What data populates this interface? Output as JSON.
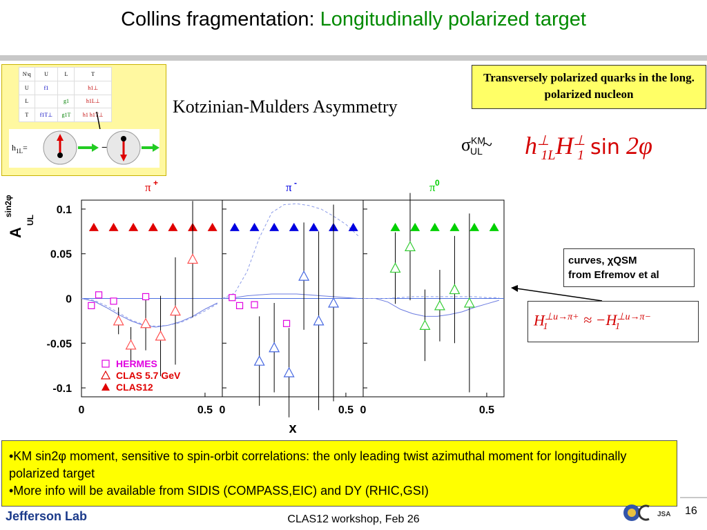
{
  "header": {
    "title_prefix": "Collins fragmentation: ",
    "title_highlight": "Longitudinally polarized target"
  },
  "tmd_table": {
    "corner_n": "N",
    "corner_q": "q",
    "col_headers": [
      "U",
      "L",
      "T"
    ],
    "rows": [
      {
        "label": "U",
        "cells": [
          "f1",
          "",
          "h1⊥"
        ]
      },
      {
        "label": "L",
        "cells": [
          "",
          "g1",
          "h1L⊥"
        ]
      },
      {
        "label": "T",
        "cells": [
          "f1T⊥",
          "g1T",
          "h1 h1T⊥"
        ]
      }
    ],
    "h1l_label": "h",
    "h1l_sub": "1L",
    "h1l_eq": "=",
    "minus": "−"
  },
  "km_title": "Kotzinian-Mulders Asymmetry",
  "trans_box": "Transversely polarized quarks in the long. polarized nucleon",
  "sigma": {
    "symbol": "σ",
    "sup": "KM",
    "sub": "UL",
    "tilde": "~"
  },
  "formula": {
    "h": "h",
    "h_sub": "1L",
    "H": "H",
    "H_sub": "1",
    "perp": "⊥",
    "sin": "sin",
    "arg": "2φ"
  },
  "curves_box": {
    "line1": "curves, χQSM",
    "line2": "from Efremov et al"
  },
  "h_box": {
    "lhs": "H",
    "sup": "⊥u→π+",
    "sub": "1",
    "approx": "≈ −H",
    "rhs_sup": "⊥u→π−",
    "rhs_sub": "1"
  },
  "chart_data": {
    "type": "scatter",
    "ylabel": "A",
    "ylabel_sup": "sin2φ",
    "ylabel_sub": "UL",
    "xlabel": "x",
    "ylim": [
      -0.11,
      0.11
    ],
    "xlim": [
      0,
      0.57
    ],
    "yticks": [
      "0.1",
      "0.05",
      "0",
      "-0.05",
      "-0.1"
    ],
    "ytick_values": [
      0.1,
      0.05,
      0,
      -0.05,
      -0.1
    ],
    "xticks": [
      "0",
      "0.5"
    ],
    "xtick_values": [
      0,
      0.5
    ],
    "panels": [
      {
        "label": "π",
        "charge": "+",
        "color": "#e00000",
        "hermes": [
          {
            "x": 0.04,
            "y": -0.008
          },
          {
            "x": 0.07,
            "y": 0.004
          },
          {
            "x": 0.13,
            "y": -0.003
          },
          {
            "x": 0.26,
            "y": 0.002
          }
        ],
        "clas57": [
          {
            "x": 0.15,
            "y": -0.025,
            "err": 0.015
          },
          {
            "x": 0.2,
            "y": -0.052,
            "err": 0.02
          },
          {
            "x": 0.26,
            "y": -0.028,
            "err": 0.03
          },
          {
            "x": 0.32,
            "y": -0.042,
            "err": 0.045
          },
          {
            "x": 0.38,
            "y": -0.014,
            "err": 0.06
          },
          {
            "x": 0.45,
            "y": 0.044,
            "err": 0.065
          }
        ],
        "clas12": [
          {
            "x": 0.05,
            "y": 0.08
          },
          {
            "x": 0.13,
            "y": 0.08
          },
          {
            "x": 0.21,
            "y": 0.08
          },
          {
            "x": 0.29,
            "y": 0.08
          },
          {
            "x": 0.37,
            "y": 0.08
          },
          {
            "x": 0.45,
            "y": 0.08
          },
          {
            "x": 0.53,
            "y": 0.08
          }
        ],
        "curve_solid": [
          [
            0,
            0.0
          ],
          [
            0.05,
            -0.003
          ],
          [
            0.1,
            -0.01
          ],
          [
            0.15,
            -0.018
          ],
          [
            0.2,
            -0.025
          ],
          [
            0.25,
            -0.03
          ],
          [
            0.3,
            -0.032
          ],
          [
            0.35,
            -0.03
          ],
          [
            0.4,
            -0.026
          ],
          [
            0.45,
            -0.02
          ],
          [
            0.5,
            -0.012
          ],
          [
            0.55,
            -0.005
          ]
        ],
        "curve_dashed": [
          [
            0,
            0.0
          ],
          [
            0.05,
            -0.002
          ],
          [
            0.1,
            -0.008
          ],
          [
            0.15,
            -0.016
          ],
          [
            0.2,
            -0.024
          ],
          [
            0.25,
            -0.029
          ],
          [
            0.3,
            -0.031
          ],
          [
            0.35,
            -0.03
          ],
          [
            0.4,
            -0.027
          ],
          [
            0.45,
            -0.021
          ],
          [
            0.5,
            -0.014
          ],
          [
            0.55,
            -0.006
          ]
        ]
      },
      {
        "label": "π",
        "charge": "-",
        "color": "#0000e0",
        "hermes": [
          {
            "x": 0.04,
            "y": 0.001
          },
          {
            "x": 0.07,
            "y": -0.008
          },
          {
            "x": 0.13,
            "y": -0.007
          },
          {
            "x": 0.26,
            "y": -0.028
          }
        ],
        "clas57": [
          {
            "x": 0.15,
            "y": -0.07,
            "err": 0.05
          },
          {
            "x": 0.21,
            "y": -0.055,
            "err": 0.05
          },
          {
            "x": 0.27,
            "y": -0.083,
            "err": 0.05
          },
          {
            "x": 0.33,
            "y": 0.025,
            "err": 0.06
          },
          {
            "x": 0.39,
            "y": -0.025,
            "err": 0.1
          },
          {
            "x": 0.45,
            "y": -0.005,
            "err": 0.11
          }
        ],
        "clas12": [
          {
            "x": 0.05,
            "y": 0.08
          },
          {
            "x": 0.13,
            "y": 0.08
          },
          {
            "x": 0.21,
            "y": 0.08
          },
          {
            "x": 0.29,
            "y": 0.08
          },
          {
            "x": 0.37,
            "y": 0.08
          },
          {
            "x": 0.45,
            "y": 0.08
          },
          {
            "x": 0.53,
            "y": 0.08
          }
        ],
        "curve_solid": [
          [
            0,
            0.0
          ],
          [
            0.05,
            0.001
          ],
          [
            0.1,
            0.003
          ],
          [
            0.15,
            0.004
          ],
          [
            0.2,
            0.005
          ],
          [
            0.25,
            0.005
          ],
          [
            0.3,
            0.005
          ],
          [
            0.35,
            0.004
          ],
          [
            0.4,
            0.003
          ],
          [
            0.45,
            0.002
          ],
          [
            0.5,
            0.001
          ],
          [
            0.55,
            0.0
          ]
        ],
        "curve_dashed": [
          [
            0,
            0.0
          ],
          [
            0.05,
            0.006
          ],
          [
            0.1,
            0.03
          ],
          [
            0.15,
            0.068
          ],
          [
            0.2,
            0.096
          ],
          [
            0.25,
            0.105
          ],
          [
            0.3,
            0.106
          ],
          [
            0.35,
            0.104
          ],
          [
            0.4,
            0.1
          ],
          [
            0.45,
            0.092
          ],
          [
            0.5,
            0.083
          ],
          [
            0.55,
            0.07
          ]
        ]
      },
      {
        "label": "π",
        "charge": "0",
        "color": "#00d000",
        "hermes": [],
        "clas57": [
          {
            "x": 0.13,
            "y": 0.034,
            "err": 0.04
          },
          {
            "x": 0.19,
            "y": 0.058,
            "err": 0.06
          },
          {
            "x": 0.25,
            "y": -0.03,
            "err": 0.04
          },
          {
            "x": 0.31,
            "y": -0.008,
            "err": 0.04
          },
          {
            "x": 0.37,
            "y": 0.01,
            "err": 0.06
          },
          {
            "x": 0.43,
            "y": -0.005,
            "err": 0.1
          }
        ],
        "clas12": [
          {
            "x": 0.13,
            "y": 0.08
          },
          {
            "x": 0.21,
            "y": 0.08
          },
          {
            "x": 0.29,
            "y": 0.08
          },
          {
            "x": 0.37,
            "y": 0.08
          },
          {
            "x": 0.45,
            "y": 0.08
          },
          {
            "x": 0.53,
            "y": 0.08
          }
        ],
        "curve_solid": [
          [
            0,
            0.0
          ],
          [
            0.05,
            0.0
          ],
          [
            0.1,
            -0.004
          ],
          [
            0.15,
            -0.012
          ],
          [
            0.2,
            -0.017
          ],
          [
            0.25,
            -0.02
          ],
          [
            0.3,
            -0.02
          ],
          [
            0.35,
            -0.018
          ],
          [
            0.4,
            -0.015
          ],
          [
            0.45,
            -0.01
          ],
          [
            0.5,
            -0.006
          ],
          [
            0.55,
            -0.002
          ]
        ],
        "curve_dashed": [
          [
            0,
            0.0
          ],
          [
            0.05,
            0.0
          ],
          [
            0.1,
            0.0
          ],
          [
            0.15,
            0.001
          ],
          [
            0.2,
            0.002
          ],
          [
            0.25,
            0.002
          ],
          [
            0.3,
            0.002
          ],
          [
            0.35,
            0.002
          ],
          [
            0.4,
            0.002
          ],
          [
            0.45,
            0.002
          ],
          [
            0.5,
            0.001
          ],
          [
            0.55,
            0.001
          ]
        ]
      }
    ],
    "legend": [
      {
        "name": "HERMES",
        "color": "#e000e0",
        "marker": "square"
      },
      {
        "name": "CLAS 5.7 GeV",
        "color": "#e00000",
        "marker": "triangle-open"
      },
      {
        "name": "CLAS12",
        "color": "#e00000",
        "marker": "triangle-filled"
      }
    ]
  },
  "notes": [
    "•KM sin2φ moment, sensitive to spin-orbit correlations: the only leading twist azimuthal moment for longitudinally polarized target",
    "•More info will be available from SIDIS (COMPASS,EIC) and DY (RHIC,GSI)"
  ],
  "footer": {
    "lab": "Jefferson Lab",
    "text": "CLAS12 workshop,  Feb 26",
    "page": "16"
  }
}
